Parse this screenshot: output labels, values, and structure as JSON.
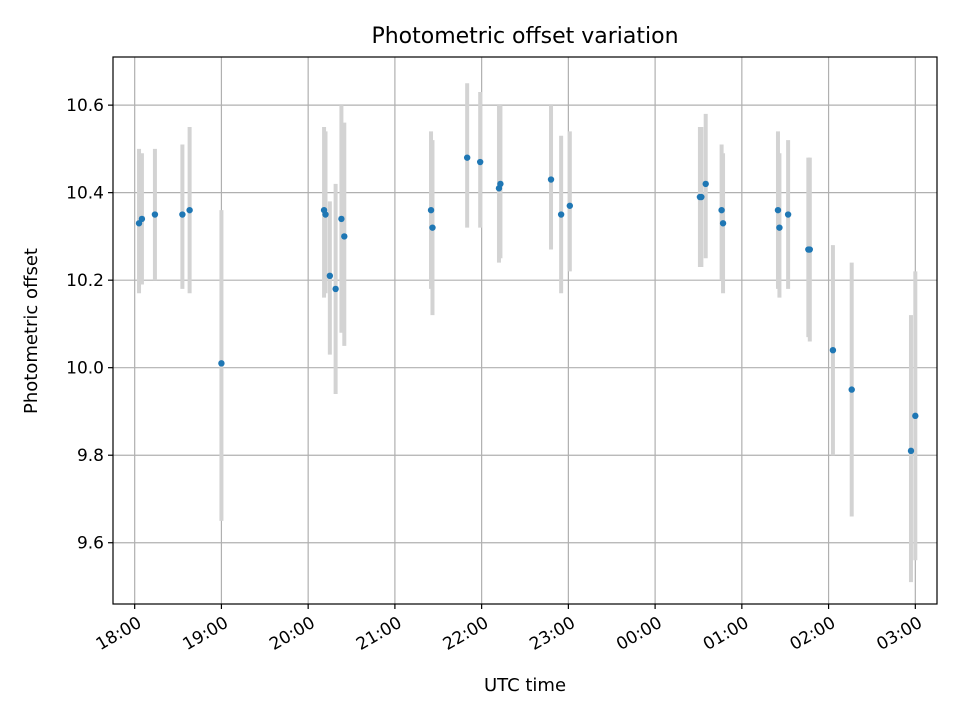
{
  "chart_data": {
    "type": "scatter",
    "title": "Photometric offset variation",
    "xlabel": "UTC time",
    "ylabel": "Photometric offset",
    "x_is_time": true,
    "x_start_time": "17:45",
    "x_end_time": "03:15",
    "ylim": [
      9.46,
      10.71
    ],
    "grid": true,
    "x_ticks": [
      "18:00",
      "19:00",
      "20:00",
      "21:00",
      "22:00",
      "23:00",
      "00:00",
      "01:00",
      "02:00",
      "03:00"
    ],
    "y_ticks": [
      9.6,
      9.8,
      10.0,
      10.2,
      10.4,
      10.6
    ],
    "y_tick_labels": [
      "9.6",
      "9.8",
      "10.0",
      "10.2",
      "10.4",
      "10.6"
    ],
    "colors": {
      "marker": "#1f77b4",
      "errorbar": "#d3d3d3",
      "grid": "#b0b0b0"
    },
    "points": [
      {
        "t": "18:03",
        "y": 10.33,
        "lo": 10.17,
        "hi": 10.5
      },
      {
        "t": "18:05",
        "y": 10.34,
        "lo": 10.19,
        "hi": 10.49
      },
      {
        "t": "18:14",
        "y": 10.35,
        "lo": 10.2,
        "hi": 10.5
      },
      {
        "t": "18:33",
        "y": 10.35,
        "lo": 10.18,
        "hi": 10.51
      },
      {
        "t": "18:38",
        "y": 10.36,
        "lo": 10.17,
        "hi": 10.55
      },
      {
        "t": "19:00",
        "y": 10.01,
        "lo": 9.65,
        "hi": 10.36
      },
      {
        "t": "20:11",
        "y": 10.36,
        "lo": 10.16,
        "hi": 10.55
      },
      {
        "t": "20:12",
        "y": 10.35,
        "lo": 10.17,
        "hi": 10.54
      },
      {
        "t": "20:15",
        "y": 10.21,
        "lo": 10.03,
        "hi": 10.38
      },
      {
        "t": "20:19",
        "y": 10.18,
        "lo": 9.94,
        "hi": 10.42
      },
      {
        "t": "20:23",
        "y": 10.34,
        "lo": 10.08,
        "hi": 10.6
      },
      {
        "t": "20:25",
        "y": 10.3,
        "lo": 10.05,
        "hi": 10.56
      },
      {
        "t": "21:25",
        "y": 10.36,
        "lo": 10.18,
        "hi": 10.54
      },
      {
        "t": "21:26",
        "y": 10.32,
        "lo": 10.12,
        "hi": 10.52
      },
      {
        "t": "21:50",
        "y": 10.48,
        "lo": 10.32,
        "hi": 10.65
      },
      {
        "t": "21:59",
        "y": 10.47,
        "lo": 10.32,
        "hi": 10.63
      },
      {
        "t": "22:12",
        "y": 10.41,
        "lo": 10.24,
        "hi": 10.6
      },
      {
        "t": "22:13",
        "y": 10.42,
        "lo": 10.25,
        "hi": 10.6
      },
      {
        "t": "22:48",
        "y": 10.43,
        "lo": 10.27,
        "hi": 10.6
      },
      {
        "t": "22:55",
        "y": 10.35,
        "lo": 10.17,
        "hi": 10.53
      },
      {
        "t": "23:01",
        "y": 10.37,
        "lo": 10.22,
        "hi": 10.54
      },
      {
        "t": "00:31",
        "y": 10.39,
        "lo": 10.23,
        "hi": 10.55
      },
      {
        "t": "00:32",
        "y": 10.39,
        "lo": 10.23,
        "hi": 10.55
      },
      {
        "t": "00:35",
        "y": 10.42,
        "lo": 10.25,
        "hi": 10.58
      },
      {
        "t": "00:46",
        "y": 10.36,
        "lo": 10.2,
        "hi": 10.51
      },
      {
        "t": "00:47",
        "y": 10.33,
        "lo": 10.17,
        "hi": 10.49
      },
      {
        "t": "01:25",
        "y": 10.36,
        "lo": 10.18,
        "hi": 10.54
      },
      {
        "t": "01:26",
        "y": 10.32,
        "lo": 10.16,
        "hi": 10.49
      },
      {
        "t": "01:32",
        "y": 10.35,
        "lo": 10.18,
        "hi": 10.52
      },
      {
        "t": "01:46",
        "y": 10.27,
        "lo": 10.07,
        "hi": 10.48
      },
      {
        "t": "01:47",
        "y": 10.27,
        "lo": 10.06,
        "hi": 10.48
      },
      {
        "t": "02:03",
        "y": 10.04,
        "lo": 9.8,
        "hi": 10.28
      },
      {
        "t": "02:16",
        "y": 9.95,
        "lo": 9.66,
        "hi": 10.24
      },
      {
        "t": "02:57",
        "y": 9.81,
        "lo": 9.51,
        "hi": 10.12
      },
      {
        "t": "03:00",
        "y": 9.89,
        "lo": 9.56,
        "hi": 10.22
      }
    ]
  }
}
